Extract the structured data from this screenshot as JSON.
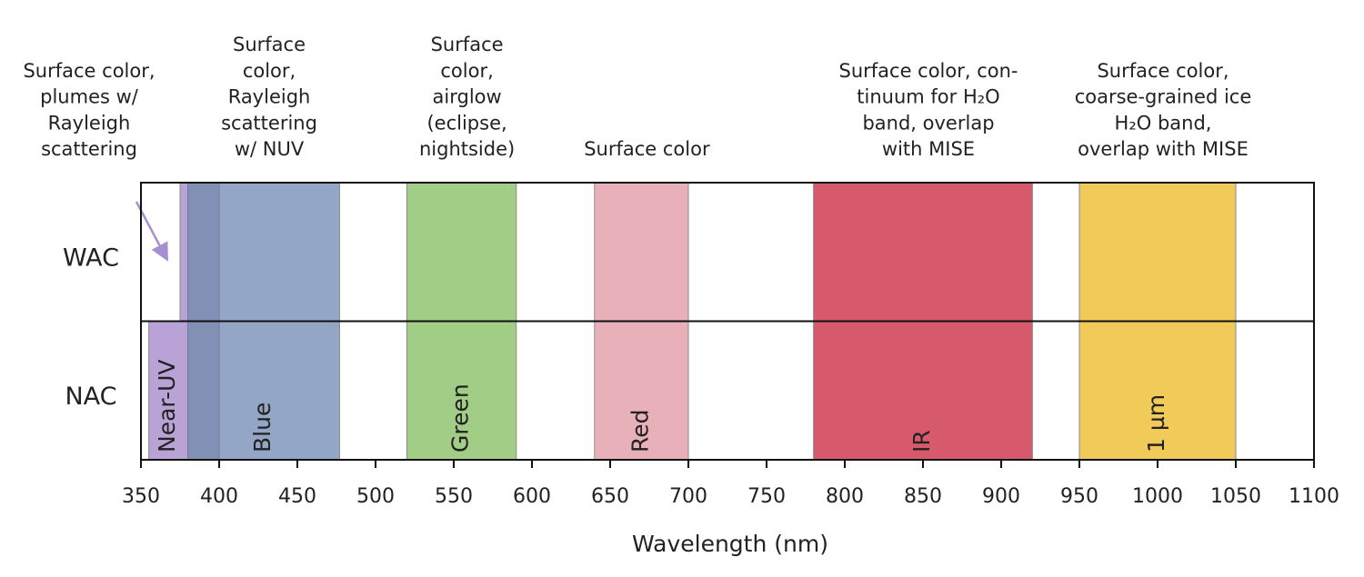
{
  "chart_data": {
    "type": "band",
    "x_label": "Wavelength (nm)",
    "rows": [
      "WAC",
      "NAC"
    ],
    "xlim": [
      350,
      1100
    ],
    "xticks": [
      350,
      400,
      450,
      500,
      550,
      600,
      650,
      700,
      750,
      800,
      850,
      900,
      950,
      1000,
      1050,
      1100
    ],
    "bands": [
      {
        "name": "Near-UV",
        "color": "#b9a3d6",
        "ranges": [
          [
            375,
            400
          ],
          [
            355,
            400
          ]
        ],
        "annotation": [
          "Surface color,",
          "plumes w/",
          "Rayleigh",
          "scattering"
        ]
      },
      {
        "name": "Blue",
        "color": "#94a6c6",
        "ranges": [
          [
            380,
            477
          ],
          [
            380,
            477
          ]
        ],
        "annotation": [
          "Surface",
          "color,",
          "Rayleigh",
          "scattering",
          "w/ NUV"
        ]
      },
      {
        "name": "Green",
        "color": "#a2cd87",
        "ranges": [
          [
            520,
            590
          ],
          [
            520,
            590
          ]
        ],
        "annotation": [
          "Surface",
          "color,",
          "airglow",
          "(eclipse,",
          "nightside)"
        ]
      },
      {
        "name": "Red",
        "color": "#e8b0b9",
        "ranges": [
          [
            640,
            700
          ],
          [
            640,
            700
          ]
        ],
        "annotation": [
          "Surface color"
        ]
      },
      {
        "name": "IR",
        "color": "#d65a6b",
        "ranges": [
          [
            780,
            920
          ],
          [
            780,
            920
          ]
        ],
        "annotation": [
          "Surface color, con-",
          "tinuum for H₂O",
          "band, overlap",
          "with MISE"
        ]
      },
      {
        "name": "1 µm",
        "color": "#f0cb5a",
        "ranges": [
          [
            950,
            1050
          ],
          [
            950,
            1050
          ]
        ],
        "annotation": [
          "Surface color,",
          "coarse-grained ice",
          "H₂O band,",
          "overlap with MISE"
        ]
      }
    ]
  }
}
